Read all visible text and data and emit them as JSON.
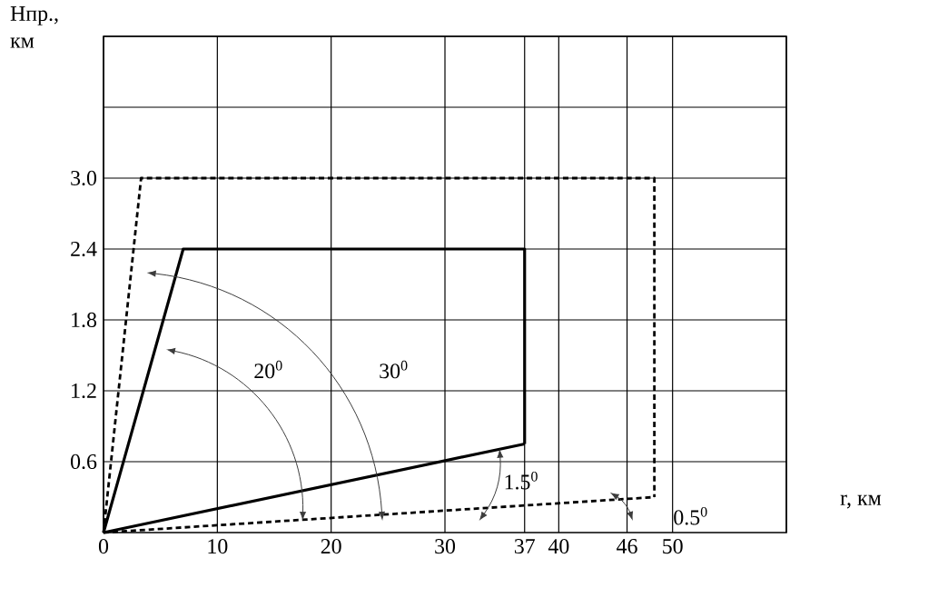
{
  "chart_data": {
    "type": "line",
    "xlabel": "r, км",
    "ylabel": "Нпр., км",
    "xlim": [
      0,
      60
    ],
    "ylim": [
      0,
      4.2
    ],
    "xticks": [
      0,
      10,
      20,
      30,
      37,
      40,
      46,
      50,
      {
        "value": 60,
        "label": null
      }
    ],
    "yticks": [
      0.6,
      1.2,
      1.8,
      2.4,
      {
        "value": 3,
        "label": "3.0"
      },
      {
        "value": 3.6,
        "label": null
      },
      {
        "value": 4.2,
        "label": null
      }
    ],
    "grid": true,
    "marker": "none",
    "series": [
      {
        "color": "#000000",
        "line_style": "solid",
        "x": [
          0,
          7,
          37,
          37
        ],
        "values": [
          0,
          2.4,
          2.4,
          0.75
        ]
      },
      {
        "color": "#000000",
        "line_style": "solid",
        "x": [
          0,
          37
        ],
        "values": [
          0,
          0.75
        ]
      },
      {
        "color": "#000000",
        "line_style": "dashed",
        "x": [
          0,
          3.3,
          48.4,
          48.4
        ],
        "values": [
          0,
          3.0,
          3.0,
          0.3
        ]
      },
      {
        "color": "#000000",
        "line_style": "dashed",
        "x": [
          0,
          48.4
        ],
        "values": [
          0,
          0.3
        ]
      }
    ],
    "annotations": [
      "20$^{0}$",
      "30$^{0}$",
      "1.5$^{0}$",
      "0.5$^{0}$"
    ]
  }
}
